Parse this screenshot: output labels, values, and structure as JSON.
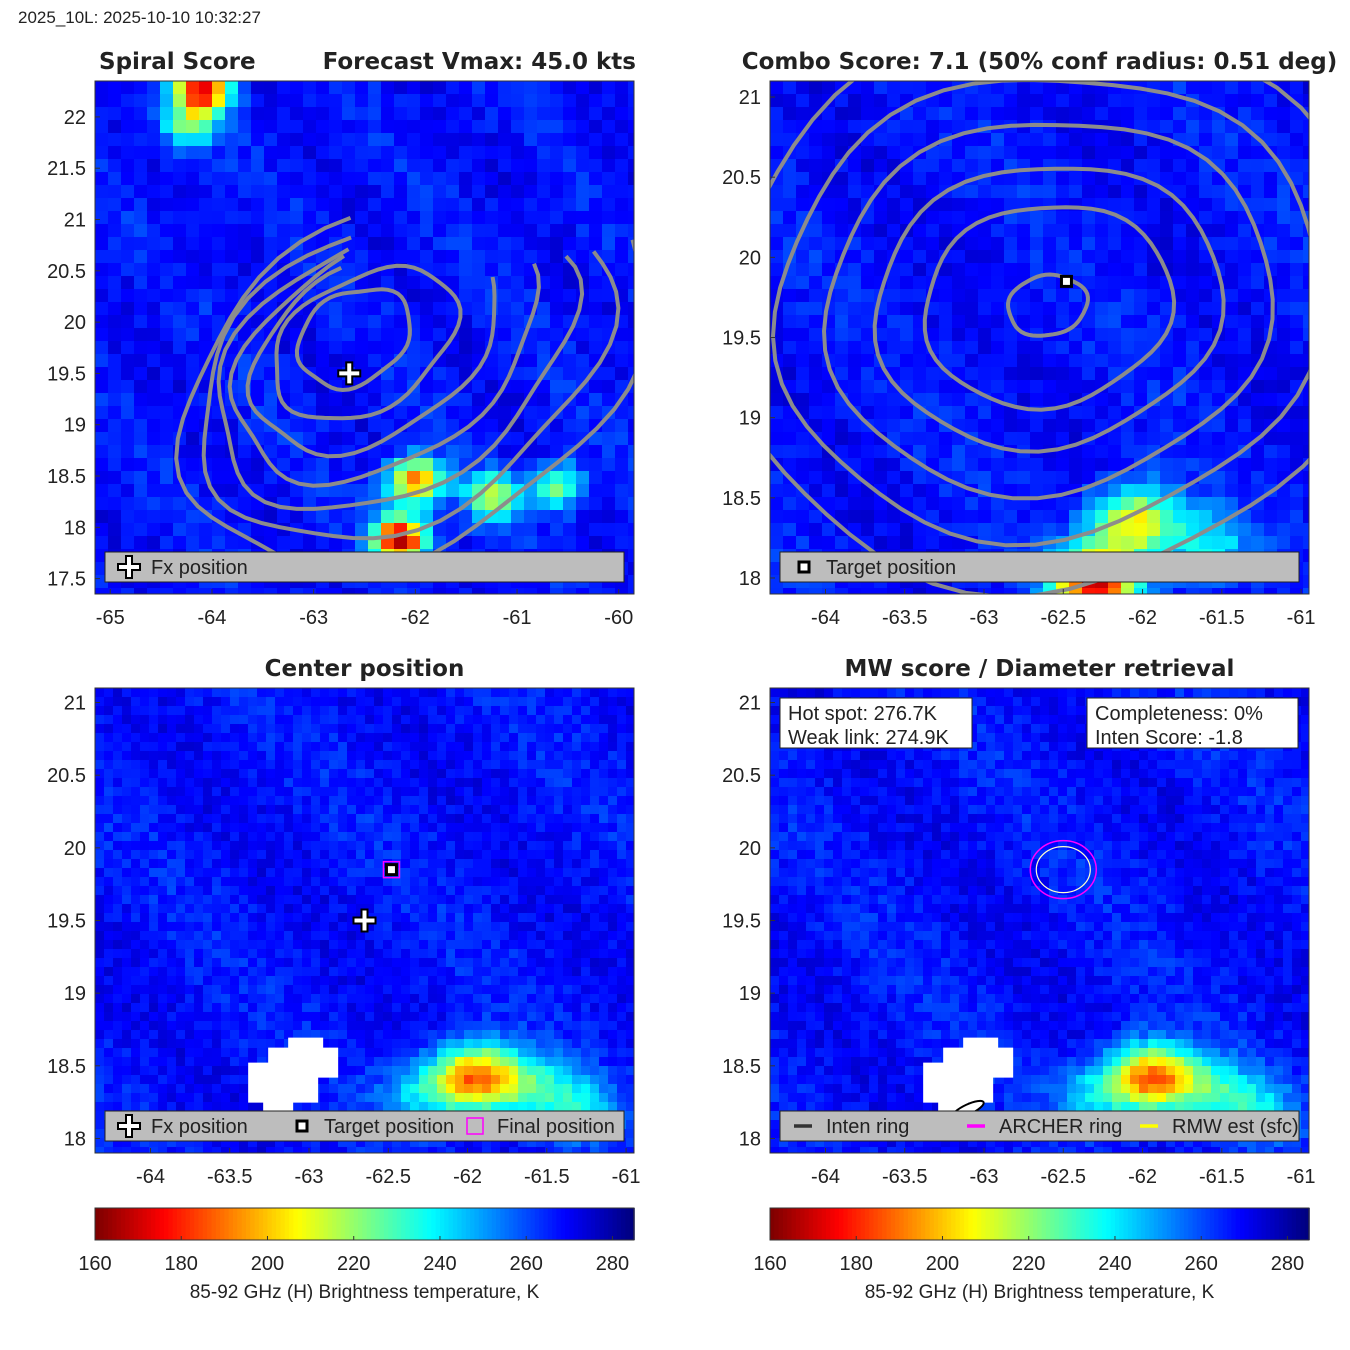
{
  "header": "2025_10L: 2025-10-10 10:32:27",
  "colors": {
    "warm_core": "#8a0000",
    "field": "#1e50f0",
    "contour": "#8c8c8c",
    "legend_bg": "#bdbdbd",
    "archer_ring": "#ff00ff",
    "rmw_ring": "#ffff00"
  },
  "panels": [
    {
      "id": "spiral",
      "title_left": "Spiral Score",
      "title_right": "Forecast Vmax: 45.0 kts",
      "xlim": [
        -65.15,
        -59.85
      ],
      "ylim": [
        17.35,
        22.35
      ],
      "xticks": [
        -65,
        -64,
        -63,
        -62,
        -61,
        -60
      ],
      "xtick_labels": [
        "-65",
        "-64",
        "-63",
        "-62",
        "-61",
        "-60"
      ],
      "yticks": [
        17.5,
        18,
        18.5,
        19,
        19.5,
        20,
        20.5,
        21,
        21.5,
        22
      ],
      "ytick_labels": [
        "17.5",
        "18",
        "18.5",
        "19",
        "19.5",
        "20",
        "20.5",
        "21",
        "21.5",
        "22"
      ],
      "legend": [
        {
          "marker": "plus",
          "label": "Fx position"
        }
      ],
      "markers": [
        {
          "type": "plus",
          "lon": -62.65,
          "lat": 19.5
        }
      ],
      "hot_spots": [
        {
          "lon": -62.15,
          "lat": 17.88,
          "tb": 162
        },
        {
          "lon": -62.0,
          "lat": 18.45,
          "tb": 185
        },
        {
          "lon": -61.25,
          "lat": 18.3,
          "tb": 215
        },
        {
          "lon": -60.6,
          "lat": 18.4,
          "tb": 222
        },
        {
          "lon": -64.1,
          "lat": 22.25,
          "tb": 172
        },
        {
          "lon": -64.25,
          "lat": 21.9,
          "tb": 230
        }
      ]
    },
    {
      "id": "combo",
      "title_left": "Combo Score: 7.1  (50% conf radius: 0.51 deg)",
      "title_right": "",
      "xlim": [
        -64.35,
        -60.95
      ],
      "ylim": [
        17.9,
        21.1
      ],
      "xticks": [
        -64,
        -63.5,
        -63,
        -62.5,
        -62,
        -61.5,
        -61
      ],
      "xtick_labels": [
        "-64",
        "-63.5",
        "-63",
        "-62.5",
        "-62",
        "-61.5",
        "-61"
      ],
      "yticks": [
        18,
        18.5,
        19,
        19.5,
        20,
        20.5,
        21
      ],
      "ytick_labels": [
        "18",
        "18.5",
        "19",
        "19.5",
        "20",
        "20.5",
        "21"
      ],
      "legend": [
        {
          "marker": "square",
          "label": "Target position"
        }
      ],
      "markers": [
        {
          "type": "square",
          "lon": -62.48,
          "lat": 19.85
        }
      ],
      "hot_spots": [
        {
          "lon": -62.05,
          "lat": 18.35,
          "tb": 205
        },
        {
          "lon": -62.3,
          "lat": 17.95,
          "tb": 170
        },
        {
          "lon": -61.6,
          "lat": 18.2,
          "tb": 238
        }
      ]
    },
    {
      "id": "center",
      "title_left": "Center position",
      "title_right": "",
      "xlim": [
        -64.35,
        -60.95
      ],
      "ylim": [
        17.9,
        21.1
      ],
      "xticks": [
        -64,
        -63.5,
        -63,
        -62.5,
        -62,
        -61.5,
        -61
      ],
      "xtick_labels": [
        "-64",
        "-63.5",
        "-63",
        "-62.5",
        "-62",
        "-61.5",
        "-61"
      ],
      "yticks": [
        18,
        18.5,
        19,
        19.5,
        20,
        20.5,
        21
      ],
      "ytick_labels": [
        "18",
        "18.5",
        "19",
        "19.5",
        "20",
        "20.5",
        "21"
      ],
      "legend": [
        {
          "marker": "plus",
          "label": "Fx position"
        },
        {
          "marker": "square",
          "label": "Target position"
        },
        {
          "marker": "magenta_square",
          "label": "Final position"
        }
      ],
      "markers": [
        {
          "type": "plus",
          "lon": -62.65,
          "lat": 19.5
        },
        {
          "type": "square",
          "lon": -62.48,
          "lat": 19.85
        },
        {
          "type": "magenta_square",
          "lon": -62.48,
          "lat": 19.85
        }
      ],
      "hot_spots": [
        {
          "lon": -61.95,
          "lat": 18.42,
          "tb": 190
        },
        {
          "lon": -61.6,
          "lat": 18.35,
          "tb": 240
        },
        {
          "lon": -62.3,
          "lat": 18.3,
          "tb": 245
        },
        {
          "lon": -61.3,
          "lat": 18.2,
          "tb": 242
        }
      ]
    },
    {
      "id": "mw",
      "title_left": "MW score / Diameter retrieval",
      "title_right": "",
      "xlim": [
        -64.35,
        -60.95
      ],
      "ylim": [
        17.9,
        21.1
      ],
      "xticks": [
        -64,
        -63.5,
        -63,
        -62.5,
        -62,
        -61.5,
        -61
      ],
      "xtick_labels": [
        "-64",
        "-63.5",
        "-63",
        "-62.5",
        "-62",
        "-61.5",
        "-61"
      ],
      "yticks": [
        18,
        18.5,
        19,
        19.5,
        20,
        20.5,
        21
      ],
      "ytick_labels": [
        "18",
        "18.5",
        "19",
        "19.5",
        "20",
        "20.5",
        "21"
      ],
      "legend": [
        {
          "marker": "line_black",
          "label": "Inten ring"
        },
        {
          "marker": "line_magenta",
          "label": "ARCHER ring"
        },
        {
          "marker": "line_yellow",
          "label": "RMW est (sfc)"
        }
      ],
      "info_left": [
        "Hot spot: 276.7K",
        "Weak link: 274.9K"
      ],
      "info_right": [
        "Completeness: 0%",
        "Inten Score: -1.8"
      ],
      "markers": [],
      "hot_spots": [
        {
          "lon": -61.95,
          "lat": 18.42,
          "tb": 190
        },
        {
          "lon": -61.6,
          "lat": 18.35,
          "tb": 240
        },
        {
          "lon": -62.3,
          "lat": 18.3,
          "tb": 245
        },
        {
          "lon": -61.3,
          "lat": 18.2,
          "tb": 242
        }
      ]
    }
  ],
  "colorbar": {
    "label": "85-92 GHz (H) Brightness temperature, K",
    "min": 160,
    "max": 285,
    "ticks": [
      160,
      180,
      200,
      220,
      240,
      260,
      280
    ],
    "tick_labels": [
      "160",
      "180",
      "200",
      "220",
      "240",
      "260",
      "280"
    ]
  },
  "chart_data": [
    {
      "type": "heatmap",
      "title": "Spiral Score",
      "subtitle": "Forecast Vmax: 45.0 kts",
      "xlabel": "",
      "ylabel": "",
      "xlim": [
        -65.15,
        -59.85
      ],
      "ylim": [
        17.35,
        22.35
      ],
      "series": [
        {
          "name": "Fx position",
          "x": [
            -62.65
          ],
          "y": [
            19.5
          ]
        }
      ]
    },
    {
      "type": "heatmap",
      "title": "Combo Score: 7.1  (50% conf radius: 0.51 deg)",
      "xlim": [
        -64.35,
        -60.95
      ],
      "ylim": [
        17.9,
        21.1
      ],
      "series": [
        {
          "name": "Target position",
          "x": [
            -62.48
          ],
          "y": [
            19.85
          ]
        }
      ]
    },
    {
      "type": "heatmap",
      "title": "Center position",
      "xlim": [
        -64.35,
        -60.95
      ],
      "ylim": [
        17.9,
        21.1
      ],
      "series": [
        {
          "name": "Fx position",
          "x": [
            -62.65
          ],
          "y": [
            19.5
          ]
        },
        {
          "name": "Target position",
          "x": [
            -62.48
          ],
          "y": [
            19.85
          ]
        },
        {
          "name": "Final position",
          "x": [
            -62.48
          ],
          "y": [
            19.85
          ]
        }
      ]
    },
    {
      "type": "heatmap",
      "title": "MW score / Diameter retrieval",
      "xlim": [
        -64.35,
        -60.95
      ],
      "ylim": [
        17.9,
        21.1
      ],
      "annotations": [
        "Hot spot: 276.7K",
        "Weak link: 274.9K",
        "Completeness: 0%",
        "Inten Score: -1.8"
      ],
      "rings": [
        {
          "name": "ARCHER ring",
          "lon": -62.5,
          "lat": 19.85,
          "radius_deg": 0.2
        },
        {
          "name": "RMW est (sfc)",
          "lon": -62.5,
          "lat": 19.85,
          "radius_deg": 0.16
        }
      ]
    }
  ]
}
